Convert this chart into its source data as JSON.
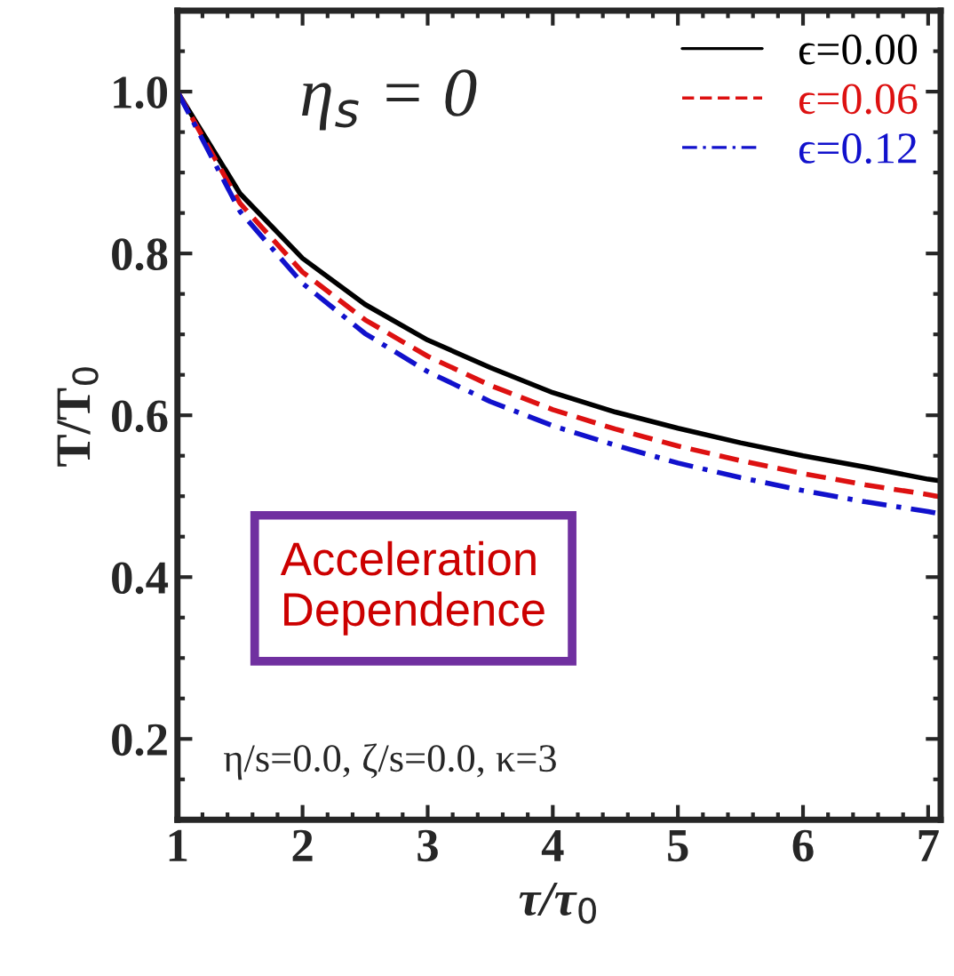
{
  "chart_data": {
    "type": "line",
    "xlabel": "τ/τ$_{0}$",
    "ylabel": "T/T$_{0}$",
    "x": [
      1,
      1.5,
      2,
      2.5,
      3,
      3.5,
      4,
      4.5,
      5,
      5.5,
      6,
      6.5,
      7,
      7.1
    ],
    "series": [
      {
        "name": "ϵ=0.00",
        "color": "#000000",
        "line_style": "solid",
        "values": [
          1.0,
          0.874,
          0.794,
          0.737,
          0.693,
          0.659,
          0.628,
          0.604,
          0.584,
          0.566,
          0.55,
          0.536,
          0.521,
          0.519
        ]
      },
      {
        "name": "ϵ=0.06",
        "color": "#dd1111",
        "line_style": "dashed",
        "values": [
          1.0,
          0.862,
          0.777,
          0.718,
          0.673,
          0.637,
          0.607,
          0.583,
          0.562,
          0.544,
          0.528,
          0.514,
          0.502,
          0.499
        ]
      },
      {
        "name": "ϵ=0.12",
        "color": "#1111cc",
        "line_style": "dashdot",
        "values": [
          1.0,
          0.852,
          0.763,
          0.701,
          0.654,
          0.617,
          0.587,
          0.563,
          0.541,
          0.523,
          0.507,
          0.493,
          0.481,
          0.478
        ]
      }
    ],
    "xlim": [
      1,
      7.1
    ],
    "ylim": [
      0.1,
      1.1
    ],
    "xticks": [
      1,
      2,
      3,
      4,
      5,
      6,
      7
    ],
    "yticks": [
      {
        "value": 0.2,
        "label": "0.2"
      },
      {
        "value": 0.4,
        "label": "0.4"
      },
      {
        "value": 0.6,
        "label": "0.6"
      },
      {
        "value": 0.8,
        "label": "0.8"
      },
      {
        "value": 1.0,
        "label": "1.0"
      }
    ],
    "annotations": [
      "η$_{s}$ = 0",
      "Acceleration\nDependence",
      "η/s=0.0, ζ/s=0.0, κ=3"
    ],
    "legend": "top right",
    "grid": false,
    "marker": "none"
  }
}
